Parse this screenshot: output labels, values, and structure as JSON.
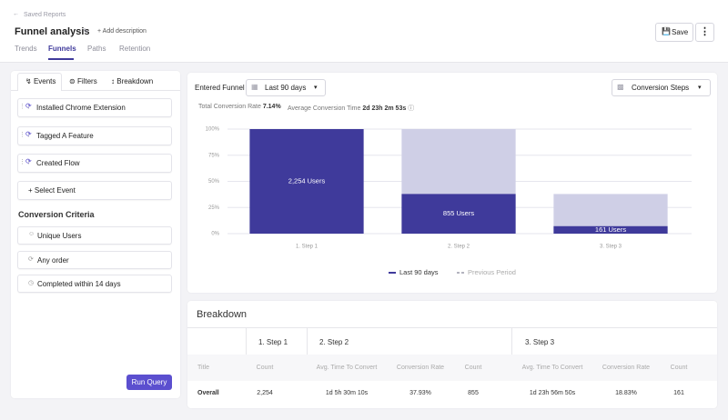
{
  "header": {
    "breadcrumb": "Saved Reports",
    "title": "Funnel analysis",
    "add_description": "+ Add description",
    "tabs": [
      "Trends",
      "Funnels",
      "Paths",
      "Retention"
    ],
    "active_tab": "Funnels",
    "save": "Save"
  },
  "sidebar": {
    "tabs": [
      "Events",
      "Filters",
      "Breakdown"
    ],
    "events": [
      "Installed Chrome Extension",
      "Tagged A Feature",
      "Created Flow"
    ],
    "select_event": "+ Select Event",
    "criteria_title": "Conversion Criteria",
    "criteria": [
      "Unique Users",
      "Any order",
      "Completed within 14 days"
    ],
    "run_query": "Run Query"
  },
  "toolbar": {
    "funnel_label": "Entered Funnel",
    "date_range": "Last 90 days",
    "view": "Conversion Steps",
    "total_conversion_rate": {
      "label": "Total Conversion Rate",
      "value": "7.14%"
    },
    "average_conversion_time": {
      "label": "Average Conversion Time",
      "value": "2d 23h 2m 53s"
    }
  },
  "chart_data": {
    "type": "bar",
    "categories": [
      "1. Step 1",
      "2. Step 2",
      "3. Step 3"
    ],
    "series": [
      {
        "name": "Last 90 days",
        "color": "#3f3a9b",
        "values": [
          100,
          37.93,
          7.14
        ],
        "data_labels": [
          "2,254 Users",
          "855 Users",
          "161 Users"
        ]
      },
      {
        "name": "Previous Period",
        "color": "#b4b4bf",
        "line_style": "dashed",
        "values": [
          null,
          null,
          null
        ]
      }
    ],
    "dropoff_color": "#cfcfe6",
    "ylim": [
      0,
      100
    ],
    "yticks": [
      {
        "value": 0,
        "label": "0%"
      },
      {
        "value": 25,
        "label": "25%"
      },
      {
        "value": 50,
        "label": "50%"
      },
      {
        "value": 75,
        "label": "75%"
      },
      {
        "value": 100,
        "label": "100%"
      }
    ],
    "grid": true
  },
  "breakdown": {
    "title": "Breakdown",
    "groups": [
      "1. Step 1",
      "2. Step 2",
      "3. Step 3"
    ],
    "columns": [
      "Title",
      "Count",
      "Avg. Time To Convert",
      "Conversion Rate",
      "Count",
      "Avg. Time To Convert",
      "Conversion Rate",
      "Count"
    ],
    "rows": [
      [
        "Overall",
        "2,254",
        "1d 5h 30m 10s",
        "37.93%",
        "855",
        "1d 23h 56m 50s",
        "18.83%",
        "161"
      ]
    ]
  }
}
